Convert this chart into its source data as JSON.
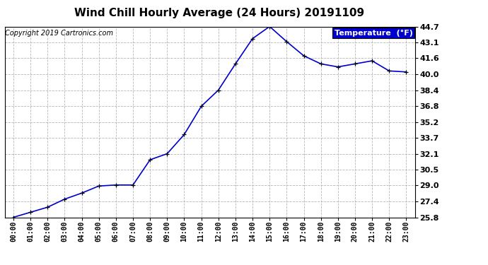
{
  "title": "Wind Chill Hourly Average (24 Hours) 20191109",
  "copyright_text": "Copyright 2019 Cartronics.com",
  "legend_label": "Temperature  (°F)",
  "hours": [
    0,
    1,
    2,
    3,
    4,
    5,
    6,
    7,
    8,
    9,
    10,
    11,
    12,
    13,
    14,
    15,
    16,
    17,
    18,
    19,
    20,
    21,
    22,
    23
  ],
  "values": [
    25.8,
    26.3,
    26.8,
    27.6,
    28.2,
    28.9,
    29.0,
    29.0,
    31.5,
    32.1,
    34.0,
    36.8,
    38.4,
    41.0,
    43.5,
    44.7,
    43.2,
    41.8,
    41.0,
    40.7,
    41.0,
    41.3,
    40.3,
    40.2
  ],
  "yticks": [
    25.8,
    27.4,
    29.0,
    30.5,
    32.1,
    33.7,
    35.2,
    36.8,
    38.4,
    40.0,
    41.6,
    43.1,
    44.7
  ],
  "line_color": "#0000cc",
  "marker": "+",
  "bg_color": "#ffffff",
  "grid_color": "#aaaaaa",
  "title_fontsize": 11,
  "copyright_fontsize": 7,
  "legend_fontsize": 8,
  "tick_fontsize": 7,
  "ytick_fontsize": 8,
  "legend_bg": "#0000cc",
  "legend_fg": "#ffffff"
}
